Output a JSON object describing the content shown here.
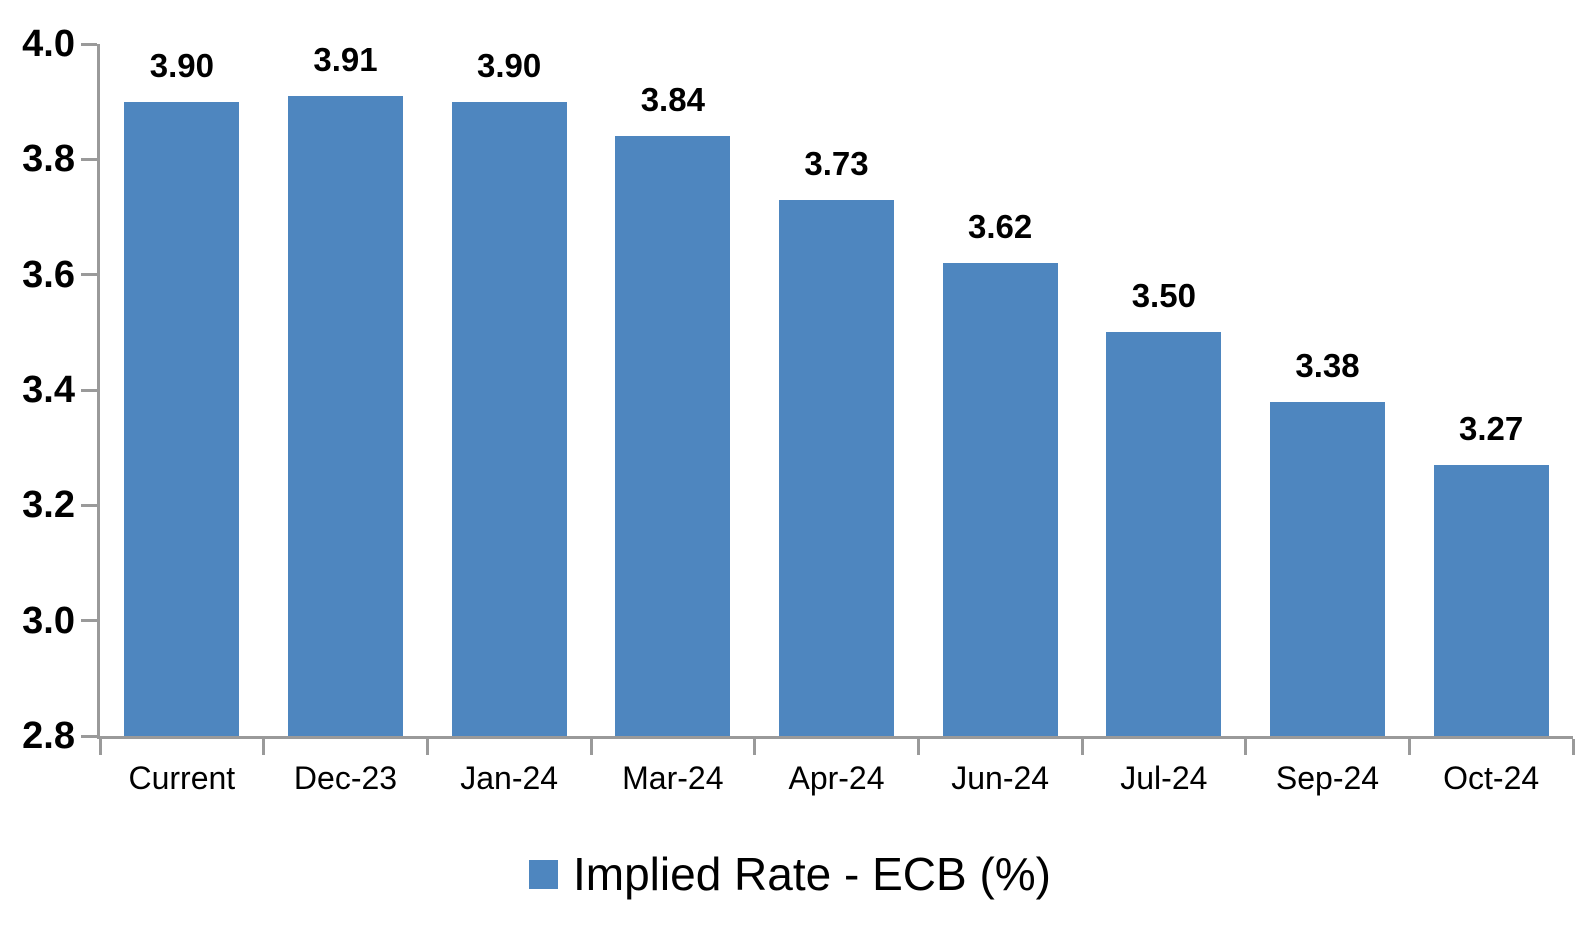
{
  "chart_data": {
    "type": "bar",
    "title": "",
    "xlabel": "",
    "ylabel": "",
    "categories": [
      "Current",
      "Dec-23",
      "Jan-24",
      "Mar-24",
      "Apr-24",
      "Jun-24",
      "Jul-24",
      "Sep-24",
      "Oct-24"
    ],
    "series": [
      {
        "name": "Implied Rate - ECB (%)",
        "values": [
          3.9,
          3.91,
          3.9,
          3.84,
          3.73,
          3.62,
          3.5,
          3.38,
          3.27
        ]
      }
    ],
    "value_labels": [
      "3.90",
      "3.91",
      "3.90",
      "3.84",
      "3.73",
      "3.62",
      "3.50",
      "3.38",
      "3.27"
    ],
    "ylim": [
      2.8,
      4.0
    ],
    "ytick_step": 0.2,
    "ytick_labels": [
      "2.8",
      "3.0",
      "3.2",
      "3.4",
      "3.6",
      "3.8",
      "4.0"
    ],
    "grid": false,
    "legend": {
      "label": "Implied Rate - ECB (%)",
      "position": "bottom-center"
    },
    "colors": {
      "bar": "#4e86bf",
      "axis": "#9a9a9a",
      "text": "#000000",
      "background": "#ffffff"
    }
  }
}
